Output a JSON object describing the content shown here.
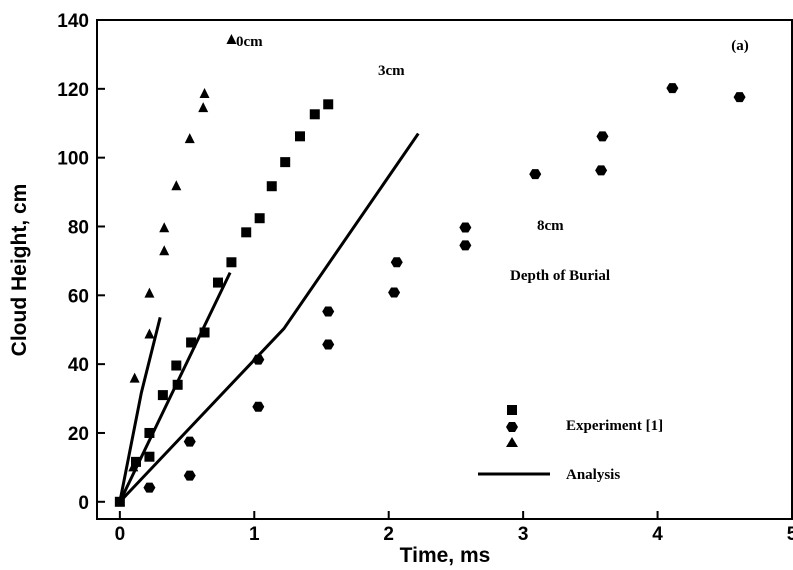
{
  "chart_data": {
    "type": "scatter",
    "x_label": "Time, ms",
    "y_label": "Cloud Height, cm",
    "panel_label": "(a)",
    "annotations": [
      "Depth of Burial"
    ],
    "xlim": [
      -0.17,
      5
    ],
    "ylim": [
      -5,
      140
    ],
    "xticks": [
      0,
      1,
      2,
      3,
      4,
      5
    ],
    "yticks": [
      0,
      20,
      40,
      60,
      80,
      100,
      120,
      140
    ],
    "color": "#000000",
    "series": [
      {
        "name": "0cm",
        "marker": "triangle",
        "x": [
          0.0,
          0.1,
          0.11,
          0.22,
          0.22,
          0.33,
          0.33,
          0.42,
          0.52,
          0.62,
          0.63,
          0.83
        ],
        "y": [
          0,
          10,
          35.8,
          48.6,
          60.5,
          72.8,
          79.5,
          91.7,
          105.4,
          114.4,
          118.5,
          134.2
        ]
      },
      {
        "name": "3cm",
        "marker": "square",
        "x": [
          0,
          0.12,
          0.22,
          0.22,
          0.32,
          0.43,
          0.42,
          0.53,
          0.63,
          0.73,
          0.83,
          0.94,
          1.04,
          1.13,
          1.23,
          1.34,
          1.45,
          1.55
        ],
        "y": [
          0,
          11.6,
          13.1,
          20,
          31,
          34,
          39.6,
          46.3,
          49.2,
          63.7,
          69.6,
          78.3,
          82.4,
          91.7,
          98.7,
          106.2,
          112.6,
          115.5
        ]
      },
      {
        "name": "8cm",
        "marker": "hexagon",
        "x": [
          0.22,
          0.52,
          0.52,
          1.03,
          1.03,
          1.55,
          1.55,
          2.04,
          2.06,
          2.57,
          2.57,
          3.09,
          3.58,
          3.59,
          4.11,
          4.61
        ],
        "y": [
          4.1,
          7.6,
          17.5,
          27.6,
          41.3,
          45.7,
          55.3,
          60.8,
          69.6,
          74.5,
          79.7,
          95.2,
          96.3,
          106.2,
          120.2,
          117.6
        ]
      }
    ],
    "analysis": [
      {
        "x": [
          0,
          0.16,
          0.3
        ],
        "y": [
          0,
          31.7,
          53.6
        ]
      },
      {
        "x": [
          0,
          0.82
        ],
        "y": [
          0,
          66.6
        ]
      },
      {
        "x": [
          0,
          1.22,
          2.22
        ],
        "y": [
          0,
          50.3,
          107
        ]
      }
    ],
    "legend": [
      "Experiment [1]",
      "Analysis"
    ]
  }
}
